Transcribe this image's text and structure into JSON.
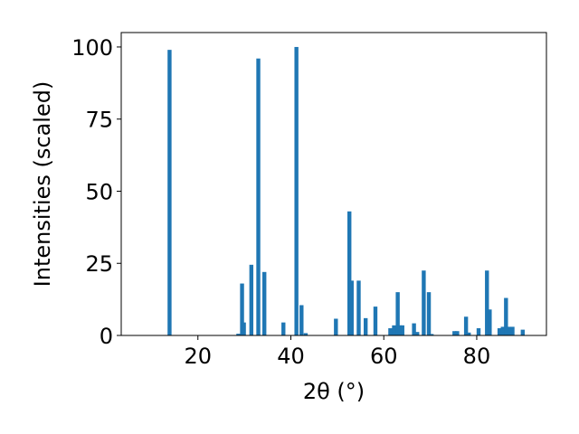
{
  "chart_data": {
    "type": "bar",
    "title": "",
    "xlabel": "2θ (°)",
    "ylabel": "Intensities (scaled)",
    "xlim": [
      3.5,
      95
    ],
    "ylim": [
      0,
      105
    ],
    "xticks": [
      20,
      40,
      60,
      80
    ],
    "yticks": [
      0,
      25,
      50,
      75,
      100
    ],
    "grid": false,
    "bar_color": "#1f77b4",
    "x": [
      13.9,
      28.7,
      29.5,
      29.9,
      31.5,
      33.0,
      34.3,
      38.4,
      41.2,
      42.3,
      43.2,
      49.7,
      52.6,
      53.1,
      54.6,
      56.1,
      58.2,
      61.4,
      62.2,
      63.0,
      63.5,
      64.0,
      66.5,
      67.2,
      68.6,
      69.7,
      70.3,
      75.2,
      75.8,
      77.7,
      78.3,
      80.4,
      82.2,
      82.8,
      84.9,
      85.6,
      86.3,
      86.9,
      87.7,
      89.9
    ],
    "values": [
      99,
      0.6,
      18,
      4.5,
      24.5,
      96,
      22,
      4.5,
      100,
      10.5,
      0.8,
      5.8,
      43,
      19,
      19,
      6,
      10,
      2.5,
      3.5,
      15,
      3.5,
      3.5,
      4.2,
      1.2,
      22.5,
      15,
      0.5,
      1.5,
      1.5,
      6.5,
      1,
      2.5,
      22.5,
      9,
      2.5,
      3,
      13,
      3,
      3,
      2
    ]
  }
}
